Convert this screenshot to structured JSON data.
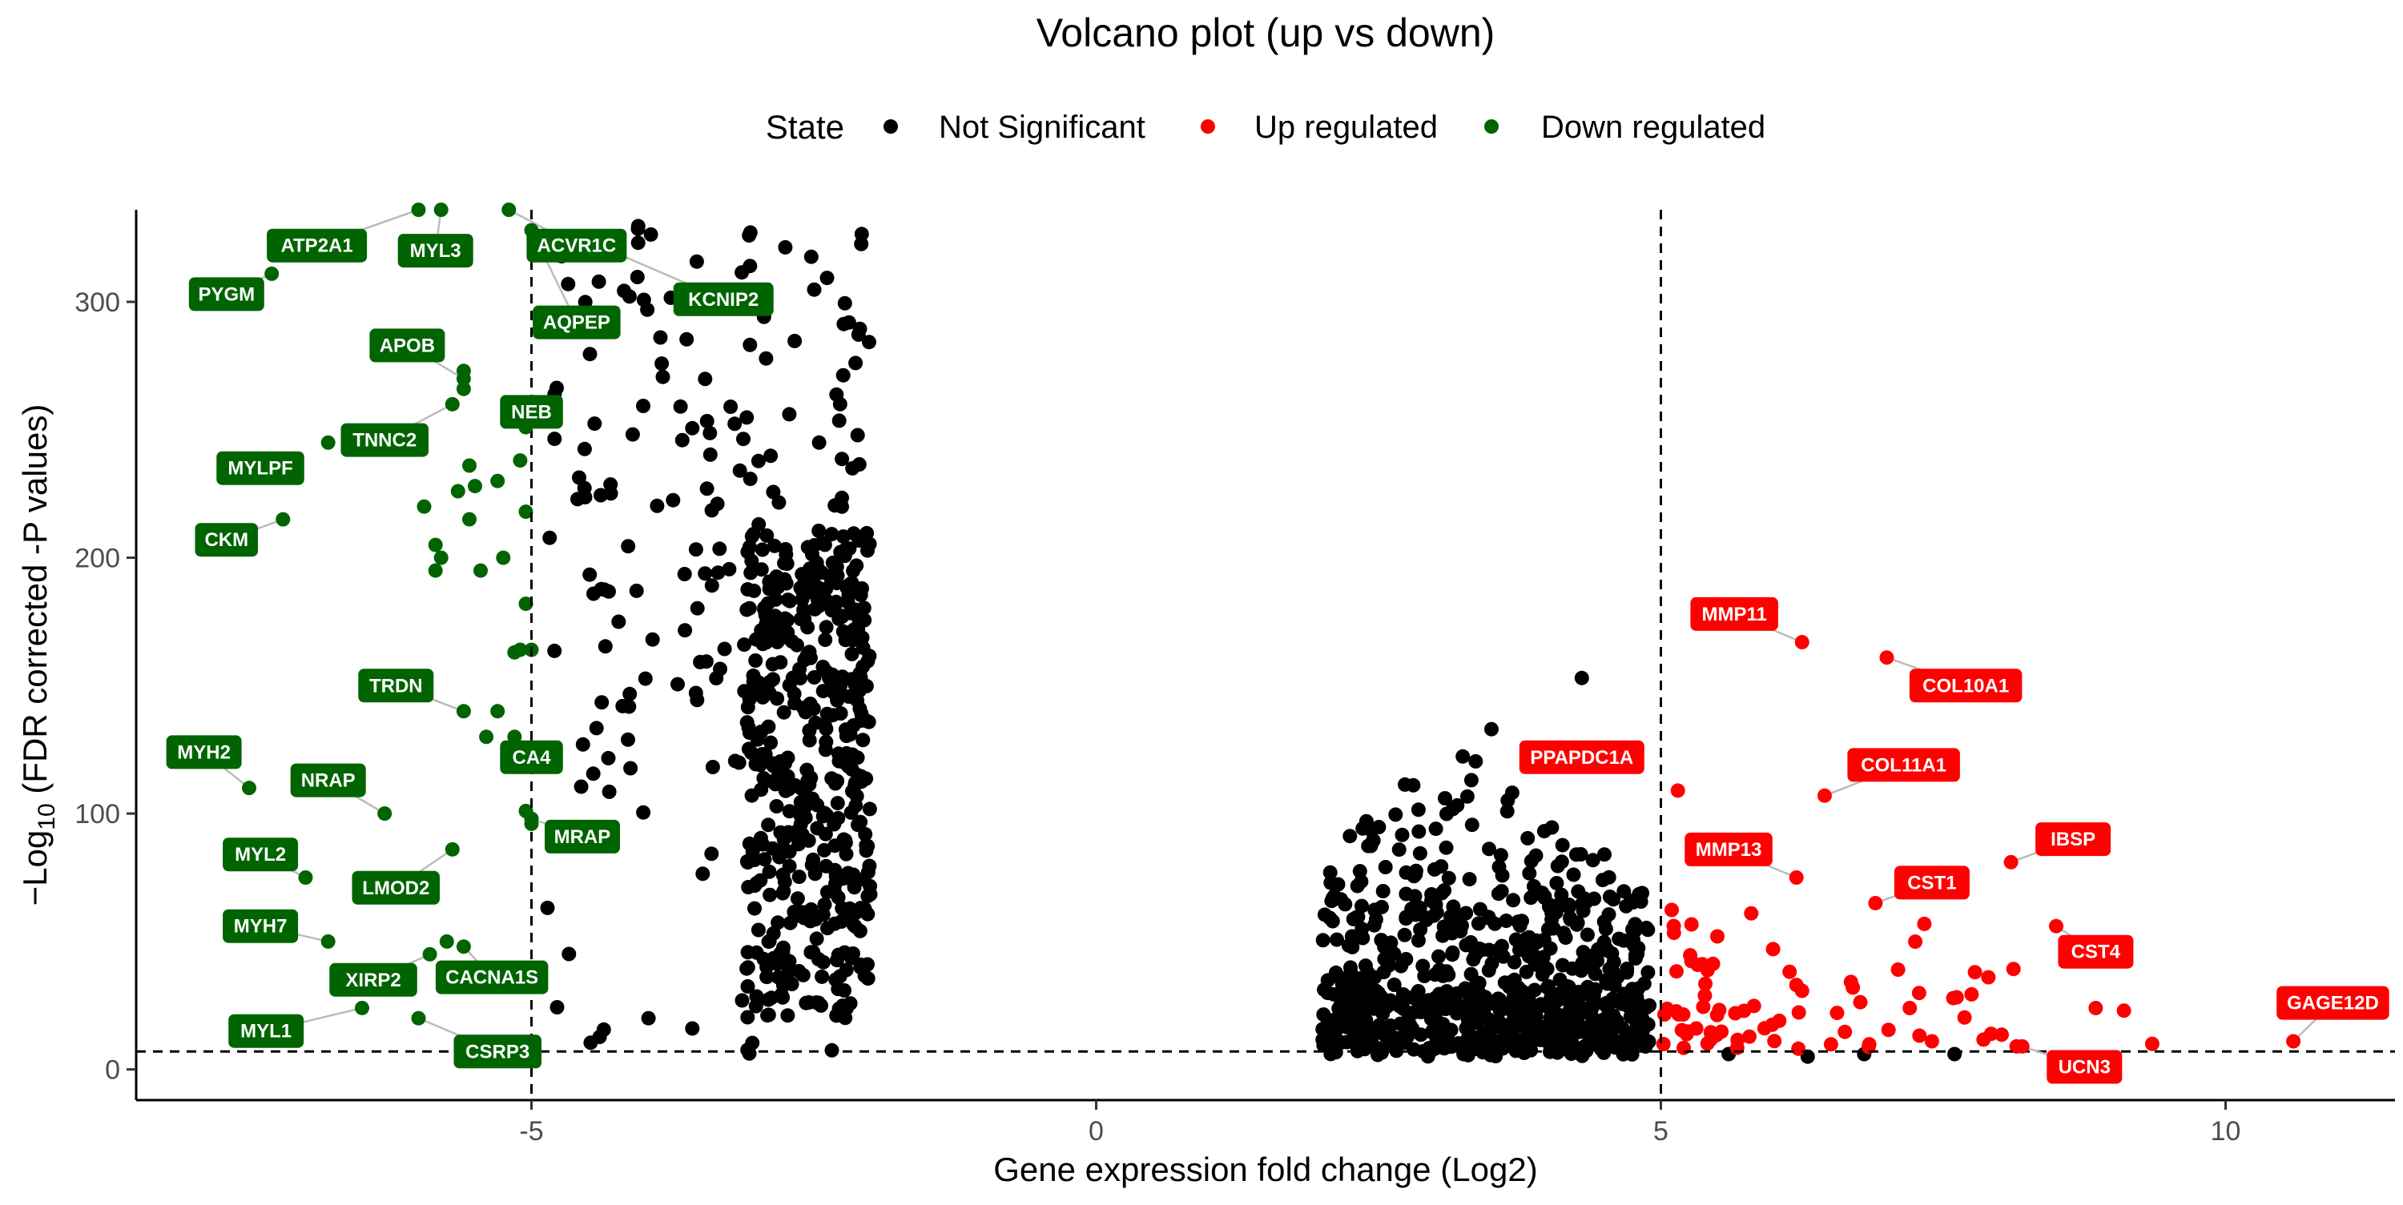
{
  "chart_data": {
    "type": "scatter",
    "title": "Volcano plot (up vs down)",
    "xlabel": "Gene expression fold change (Log2)",
    "ylabel_prefix": "−Log",
    "ylabel_sub": "10",
    "ylabel_suffix": " (FDR corrected -P values)",
    "xlim": [
      -8.5,
      11.5
    ],
    "ylim": [
      -12,
      336
    ],
    "x_ticks": [
      -5,
      0,
      5,
      10
    ],
    "y_ticks": [
      0,
      100,
      200,
      300
    ],
    "thresholds": {
      "x": [
        -5,
        5
      ],
      "y": 7
    },
    "legend": {
      "placement": "top",
      "title": "State",
      "items": [
        {
          "label": "Not Significant",
          "color": "#000000"
        },
        {
          "label": "Up regulated",
          "color": "#FF0000"
        },
        {
          "label": "Down regulated",
          "color": "#006400"
        }
      ]
    },
    "colors": {
      "not_significant": "#000000",
      "up": "#FF0000",
      "down": "#006400",
      "leader": "#BBBBBB"
    },
    "labeled_genes": [
      {
        "gene": "ATP2A1",
        "state": "down",
        "label_x": -6.9,
        "label_y": 322,
        "point": [
          -6.0,
          336
        ]
      },
      {
        "gene": "MYL3",
        "state": "down",
        "label_x": -5.85,
        "label_y": 320,
        "point": [
          -5.8,
          336
        ]
      },
      {
        "gene": "ACVR1C",
        "state": "down",
        "label_x": -4.6,
        "label_y": 322,
        "point": [
          -5.2,
          336
        ]
      },
      {
        "gene": "PYGM",
        "state": "down",
        "label_x": -7.7,
        "label_y": 303,
        "point": [
          -7.3,
          311
        ]
      },
      {
        "gene": "KCNIP2",
        "state": "down",
        "label_x": -3.3,
        "label_y": 301,
        "point": [
          -4.3,
          320
        ]
      },
      {
        "gene": "AQPEP",
        "state": "down",
        "label_x": -4.6,
        "label_y": 292,
        "point": [
          -5.0,
          328
        ]
      },
      {
        "gene": "APOB",
        "state": "down",
        "label_x": -6.1,
        "label_y": 283,
        "point": [
          -5.6,
          270
        ]
      },
      {
        "gene": "NEB",
        "state": "down",
        "label_x": -5.0,
        "label_y": 257,
        "point": [
          -5.05,
          251
        ]
      },
      {
        "gene": "TNNC2",
        "state": "down",
        "label_x": -6.3,
        "label_y": 246,
        "point": [
          -5.7,
          260
        ]
      },
      {
        "gene": "MYLPF",
        "state": "down",
        "label_x": -7.4,
        "label_y": 235,
        "point": [
          -7.4,
          235
        ]
      },
      {
        "gene": "CKM",
        "state": "down",
        "label_x": -7.7,
        "label_y": 207,
        "point": [
          -7.2,
          215
        ]
      },
      {
        "gene": "TRDN",
        "state": "down",
        "label_x": -6.2,
        "label_y": 150,
        "point": [
          -5.6,
          140
        ]
      },
      {
        "gene": "MYH2",
        "state": "down",
        "label_x": -7.9,
        "label_y": 124,
        "point": [
          -7.5,
          110
        ]
      },
      {
        "gene": "CA4",
        "state": "down",
        "label_x": -5.0,
        "label_y": 122,
        "point": [
          -5.15,
          130
        ]
      },
      {
        "gene": "NRAP",
        "state": "down",
        "label_x": -6.8,
        "label_y": 113,
        "point": [
          -6.3,
          100
        ]
      },
      {
        "gene": "MRAP",
        "state": "down",
        "label_x": -4.55,
        "label_y": 91,
        "point": [
          -5.0,
          98
        ]
      },
      {
        "gene": "MYL2",
        "state": "down",
        "label_x": -7.4,
        "label_y": 84,
        "point": [
          -7.0,
          75
        ]
      },
      {
        "gene": "LMOD2",
        "state": "down",
        "label_x": -6.2,
        "label_y": 71,
        "point": [
          -5.7,
          86
        ]
      },
      {
        "gene": "MYH7",
        "state": "down",
        "label_x": -7.4,
        "label_y": 56,
        "point": [
          -6.8,
          50
        ]
      },
      {
        "gene": "XIRP2",
        "state": "down",
        "label_x": -6.4,
        "label_y": 35,
        "point": [
          -5.9,
          45
        ]
      },
      {
        "gene": "CACNA1S",
        "state": "down",
        "label_x": -5.35,
        "label_y": 36,
        "point": [
          -5.6,
          48
        ]
      },
      {
        "gene": "MYL1",
        "state": "down",
        "label_x": -7.35,
        "label_y": 15,
        "point": [
          -6.5,
          24
        ]
      },
      {
        "gene": "CSRP3",
        "state": "down",
        "label_x": -5.3,
        "label_y": 7,
        "point": [
          -6.0,
          20
        ]
      },
      {
        "gene": "MMP11",
        "state": "up",
        "label_x": 5.65,
        "label_y": 178,
        "point": [
          6.25,
          167
        ]
      },
      {
        "gene": "COL10A1",
        "state": "up",
        "label_x": 7.7,
        "label_y": 150,
        "point": [
          7.0,
          161
        ]
      },
      {
        "gene": "PPAPDC1A",
        "state": "up",
        "label_x": 4.3,
        "label_y": 122,
        "point": [
          4.35,
          122
        ]
      },
      {
        "gene": "COL11A1",
        "state": "up",
        "label_x": 7.15,
        "label_y": 119,
        "point": [
          6.45,
          107
        ]
      },
      {
        "gene": "IBSP",
        "state": "up",
        "label_x": 8.65,
        "label_y": 90,
        "point": [
          8.1,
          81
        ]
      },
      {
        "gene": "MMP13",
        "state": "up",
        "label_x": 5.6,
        "label_y": 86,
        "point": [
          6.2,
          75
        ]
      },
      {
        "gene": "CST1",
        "state": "up",
        "label_x": 7.4,
        "label_y": 73,
        "point": [
          6.9,
          65
        ]
      },
      {
        "gene": "CST4",
        "state": "up",
        "label_x": 8.85,
        "label_y": 46,
        "point": [
          8.5,
          56
        ]
      },
      {
        "gene": "GAGE12D",
        "state": "up",
        "label_x": 10.95,
        "label_y": 26,
        "point": [
          10.6,
          11
        ]
      },
      {
        "gene": "UCN3",
        "state": "up",
        "label_x": 8.75,
        "label_y": 1,
        "point": [
          8.2,
          9
        ]
      }
    ]
  }
}
